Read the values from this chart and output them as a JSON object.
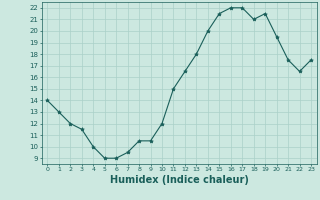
{
  "x": [
    0,
    1,
    2,
    3,
    4,
    5,
    6,
    7,
    8,
    9,
    10,
    11,
    12,
    13,
    14,
    15,
    16,
    17,
    18,
    19,
    20,
    21,
    22,
    23
  ],
  "y": [
    14,
    13,
    12,
    11.5,
    10,
    9,
    9,
    9.5,
    10.5,
    10.5,
    12,
    15,
    16.5,
    18,
    20,
    21.5,
    22,
    22,
    21,
    21.5,
    19.5,
    17.5,
    16.5,
    17.5
  ],
  "line_color": "#1a5f5a",
  "marker": "*",
  "marker_color": "#1a5f5a",
  "bg_color": "#cce8e0",
  "grid_color": "#aad0c8",
  "tick_color": "#1a5f5a",
  "xlabel": "Humidex (Indice chaleur)",
  "xlabel_fontsize": 7,
  "xlim": [
    -0.5,
    23.5
  ],
  "ylim": [
    8.5,
    22.5
  ],
  "yticks": [
    9,
    10,
    11,
    12,
    13,
    14,
    15,
    16,
    17,
    18,
    19,
    20,
    21,
    22
  ],
  "xticks": [
    0,
    1,
    2,
    3,
    4,
    5,
    6,
    7,
    8,
    9,
    10,
    11,
    12,
    13,
    14,
    15,
    16,
    17,
    18,
    19,
    20,
    21,
    22,
    23
  ]
}
